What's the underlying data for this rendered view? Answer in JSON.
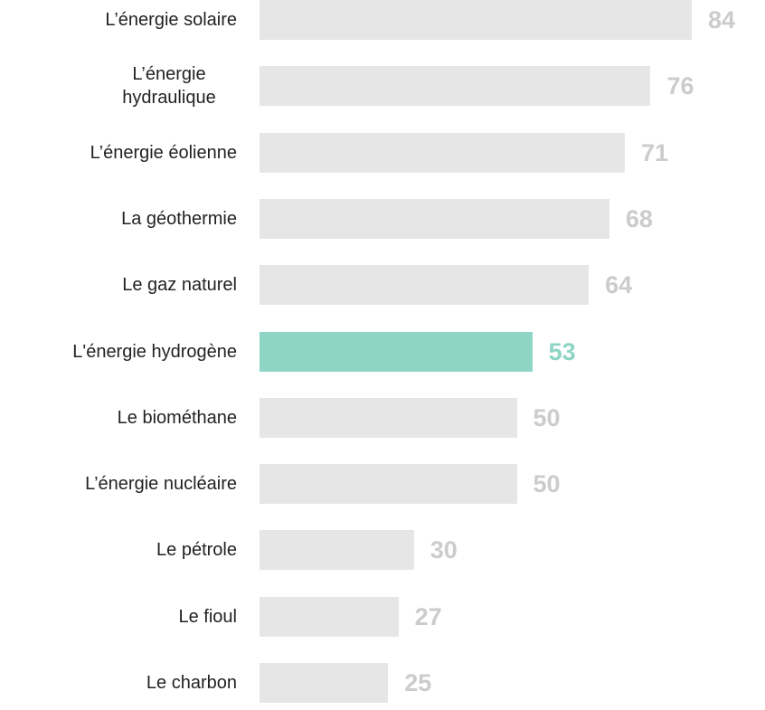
{
  "chart_data": {
    "type": "bar",
    "orientation": "horizontal",
    "categories": [
      "L’énergie solaire",
      "L’énergie hydraulique",
      "L’énergie éolienne",
      "La géothermie",
      "Le gaz naturel",
      "L'énergie hydrogène",
      "Le biométhane",
      "L’énergie nucléaire",
      "Le pétrole",
      "Le fioul",
      "Le charbon"
    ],
    "values": [
      84,
      76,
      71,
      68,
      64,
      53,
      50,
      50,
      30,
      27,
      25
    ],
    "colors": [
      "#e6e6e6",
      "#e6e6e6",
      "#e6e6e6",
      "#e6e6e6",
      "#e6e6e6",
      "#8fd5c6",
      "#e6e6e6",
      "#e6e6e6",
      "#e6e6e6",
      "#e6e6e6",
      "#e6e6e6"
    ],
    "label_colors": [
      "#cccccc",
      "#cccccc",
      "#cccccc",
      "#cccccc",
      "#cccccc",
      "#8fd5c6",
      "#cccccc",
      "#cccccc",
      "#cccccc",
      "#cccccc",
      "#cccccc"
    ]
  }
}
